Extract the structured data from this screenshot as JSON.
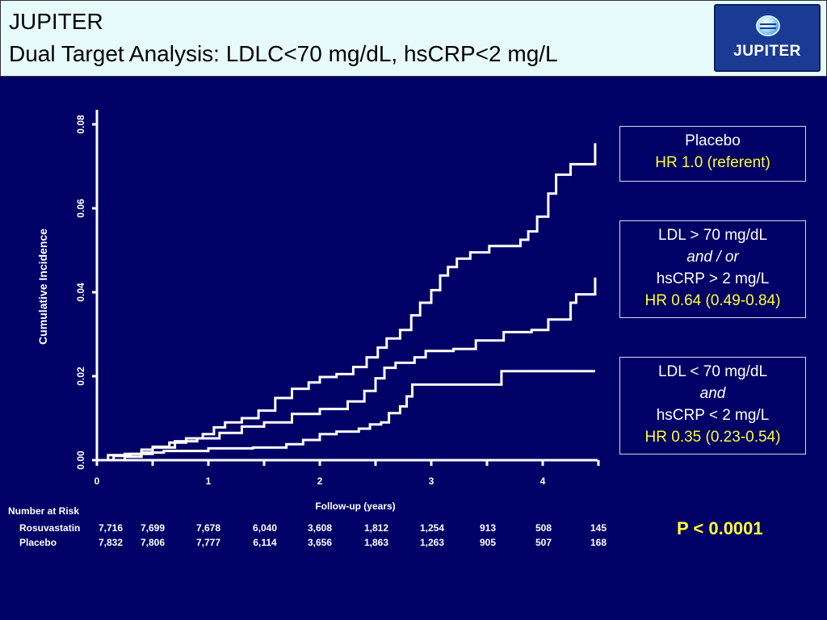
{
  "slide": {
    "title_line1": "JUPITER",
    "title_line2": "Dual Target Analysis: LDLC<70 mg/dL, hsCRP<2 mg/L",
    "logo_text": "JUPITER"
  },
  "colors": {
    "background": "#000066",
    "header_bg": "#e8fbfb",
    "line": "#ffffff",
    "hr_text": "#ffff33"
  },
  "chart_data": {
    "type": "line",
    "xlabel": "Follow-up (years)",
    "ylabel": "Cumulative Incidence",
    "xlim": [
      0,
      4.5
    ],
    "ylim": [
      0,
      0.08
    ],
    "x_ticks": [
      0,
      1,
      2,
      3,
      4
    ],
    "x_tick_labels": [
      "0",
      "1",
      "2",
      "3",
      "4"
    ],
    "y_ticks": [
      0,
      0.02,
      0.04,
      0.06,
      0.08
    ],
    "y_tick_labels": [
      "0.00",
      "0.02",
      "0.04",
      "0.06",
      "0.08"
    ],
    "grid": false,
    "series": [
      {
        "label_lines": [
          "Placebo"
        ],
        "hr": "HR 1.0 (referent)",
        "points": [
          [
            0,
            0
          ],
          [
            0.1,
            0.0012
          ],
          [
            0.25,
            0.0015
          ],
          [
            0.4,
            0.0025
          ],
          [
            0.5,
            0.0032
          ],
          [
            0.65,
            0.0042
          ],
          [
            0.8,
            0.0052
          ],
          [
            0.95,
            0.0062
          ],
          [
            1.05,
            0.0078
          ],
          [
            1.15,
            0.009
          ],
          [
            1.3,
            0.01
          ],
          [
            1.45,
            0.0118
          ],
          [
            1.6,
            0.0148
          ],
          [
            1.75,
            0.017
          ],
          [
            1.9,
            0.0185
          ],
          [
            2.0,
            0.0198
          ],
          [
            2.15,
            0.0205
          ],
          [
            2.3,
            0.0222
          ],
          [
            2.42,
            0.0245
          ],
          [
            2.52,
            0.0268
          ],
          [
            2.6,
            0.029
          ],
          [
            2.72,
            0.031
          ],
          [
            2.82,
            0.0345
          ],
          [
            2.9,
            0.0375
          ],
          [
            3.0,
            0.0405
          ],
          [
            3.08,
            0.044
          ],
          [
            3.15,
            0.046
          ],
          [
            3.23,
            0.048
          ],
          [
            3.35,
            0.0495
          ],
          [
            3.52,
            0.051
          ],
          [
            3.8,
            0.0525
          ],
          [
            3.87,
            0.0545
          ],
          [
            3.95,
            0.058
          ],
          [
            4.05,
            0.0635
          ],
          [
            4.12,
            0.068
          ],
          [
            4.25,
            0.0705
          ],
          [
            4.47,
            0.0755
          ]
        ]
      },
      {
        "label_lines": [
          "LDL > 70 mg/dL",
          "and / or",
          "hsCRP > 2 mg/L"
        ],
        "hr": "HR 0.64 (0.49-0.84)",
        "points": [
          [
            0,
            0
          ],
          [
            0.15,
            0.001
          ],
          [
            0.3,
            0.0015
          ],
          [
            0.5,
            0.003
          ],
          [
            0.7,
            0.0045
          ],
          [
            0.9,
            0.0052
          ],
          [
            1.1,
            0.0065
          ],
          [
            1.3,
            0.008
          ],
          [
            1.5,
            0.009
          ],
          [
            1.75,
            0.011
          ],
          [
            2.0,
            0.0122
          ],
          [
            2.25,
            0.014
          ],
          [
            2.4,
            0.0165
          ],
          [
            2.5,
            0.0195
          ],
          [
            2.58,
            0.022
          ],
          [
            2.68,
            0.0232
          ],
          [
            2.85,
            0.0245
          ],
          [
            2.95,
            0.026
          ],
          [
            3.2,
            0.0265
          ],
          [
            3.4,
            0.0285
          ],
          [
            3.65,
            0.0305
          ],
          [
            3.9,
            0.031
          ],
          [
            4.05,
            0.0335
          ],
          [
            4.25,
            0.0375
          ],
          [
            4.3,
            0.0395
          ],
          [
            4.47,
            0.0435
          ]
        ]
      },
      {
        "label_lines": [
          "LDL < 70 mg/dL",
          "and",
          "hsCRP < 2 mg/L"
        ],
        "hr": "HR 0.35 (0.23-0.54)",
        "points": [
          [
            0,
            0
          ],
          [
            0.25,
            0.0008
          ],
          [
            0.4,
            0.0018
          ],
          [
            0.6,
            0.0022
          ],
          [
            1.0,
            0.0028
          ],
          [
            1.4,
            0.003
          ],
          [
            1.7,
            0.0038
          ],
          [
            1.85,
            0.0048
          ],
          [
            2.0,
            0.0062
          ],
          [
            2.15,
            0.0068
          ],
          [
            2.35,
            0.0075
          ],
          [
            2.45,
            0.0085
          ],
          [
            2.55,
            0.009
          ],
          [
            2.62,
            0.0112
          ],
          [
            2.72,
            0.0128
          ],
          [
            2.78,
            0.0152
          ],
          [
            2.83,
            0.018
          ],
          [
            3.0,
            0.018
          ],
          [
            3.3,
            0.018
          ],
          [
            3.63,
            0.0212
          ],
          [
            4.0,
            0.0212
          ],
          [
            4.47,
            0.0212
          ]
        ]
      }
    ]
  },
  "at_risk": {
    "title": "Number at Risk",
    "rows": [
      {
        "label": "Rosuvastatin",
        "values": [
          "7,716",
          "7,699",
          "7,678",
          "6,040",
          "3,608",
          "1,812",
          "1,254",
          "913",
          "508",
          "145"
        ]
      },
      {
        "label": "Placebo",
        "values": [
          "7,832",
          "7,806",
          "7,777",
          "6,114",
          "3,656",
          "1,863",
          "1,263",
          "905",
          "507",
          "168"
        ]
      }
    ]
  },
  "p_value": "P < 0.0001"
}
